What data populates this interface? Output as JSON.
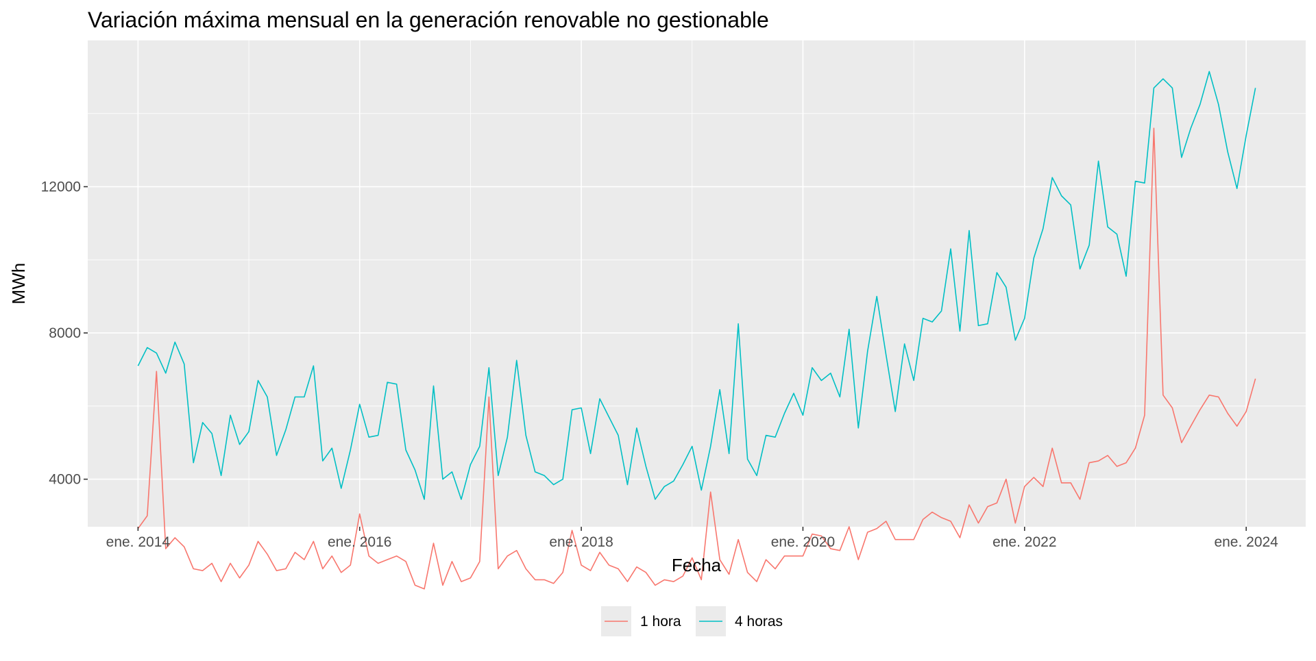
{
  "chart_data": {
    "type": "line",
    "title": "Variación máxima mensual en la generación renovable no gestionable",
    "xlabel": "Fecha",
    "ylabel": "MWh",
    "x_start": "2014-01",
    "x_end": "2024-02",
    "x_ticks": [
      {
        "date": "2014-01",
        "label": "ene. 2014"
      },
      {
        "date": "2016-01",
        "label": "ene. 2016"
      },
      {
        "date": "2018-01",
        "label": "ene. 2018"
      },
      {
        "date": "2020-01",
        "label": "ene. 2020"
      },
      {
        "date": "2022-01",
        "label": "ene. 2022"
      },
      {
        "date": "2024-01",
        "label": "ene. 2024"
      }
    ],
    "y_ticks": [
      4000,
      8000,
      12000
    ],
    "ylim": [
      2700,
      16000
    ],
    "grid": true,
    "legend_position": "bottom",
    "series": [
      {
        "name": "1 hora",
        "color": "#F8766D",
        "values": [
          2650,
          3000,
          6950,
          2100,
          2400,
          2150,
          1550,
          1500,
          1700,
          1200,
          1700,
          1300,
          1650,
          2300,
          1950,
          1500,
          1550,
          2000,
          1800,
          2300,
          1550,
          1900,
          1450,
          1650,
          3050,
          1900,
          1700,
          1800,
          1900,
          1750,
          1100,
          1000,
          2250,
          1100,
          1750,
          1200,
          1300,
          1750,
          6250,
          1550,
          1900,
          2050,
          1550,
          1250,
          1250,
          1150,
          1450,
          2600,
          1650,
          1500,
          2000,
          1650,
          1550,
          1200,
          1600,
          1450,
          1100,
          1250,
          1200,
          1350,
          1850,
          1250,
          3650,
          1800,
          1400,
          2350,
          1450,
          1200,
          1800,
          1550,
          1900,
          1900,
          1900,
          2500,
          2450,
          2100,
          2050,
          2700,
          1800,
          2550,
          2650,
          2850,
          2350,
          2350,
          2350,
          2900,
          3100,
          2950,
          2850,
          2400,
          3300,
          2800,
          3250,
          3350,
          4000,
          2800,
          3800,
          4050,
          3800,
          4850,
          3900,
          3900,
          3450,
          4450,
          4500,
          4650,
          4350,
          4450,
          4850,
          5750,
          13600,
          6300,
          5950,
          5000,
          5450,
          5900,
          6300,
          6250,
          5800,
          5450,
          5850,
          6750
        ]
      },
      {
        "name": "4 horas",
        "color": "#00BFC4",
        "values": [
          7100,
          7600,
          7450,
          6900,
          7750,
          7150,
          4450,
          5550,
          5250,
          4100,
          5750,
          4950,
          5300,
          6700,
          6250,
          4650,
          5350,
          6250,
          6250,
          7100,
          4500,
          4850,
          3750,
          4800,
          6050,
          5150,
          5200,
          6650,
          6600,
          4800,
          4250,
          3450,
          6550,
          4000,
          4200,
          3450,
          4400,
          4900,
          7050,
          4100,
          5150,
          7250,
          5200,
          4200,
          4100,
          3850,
          4000,
          5900,
          5950,
          4700,
          6200,
          5700,
          5200,
          3850,
          5400,
          4350,
          3450,
          3800,
          3950,
          4400,
          4900,
          3700,
          4900,
          6450,
          4700,
          8250,
          4550,
          4100,
          5200,
          5150,
          5800,
          6350,
          5750,
          7050,
          6700,
          6900,
          6250,
          8100,
          5400,
          7500,
          9000,
          7400,
          5850,
          7700,
          6700,
          8400,
          8300,
          8600,
          10300,
          8050,
          10800,
          8200,
          8250,
          9650,
          9250,
          7800,
          8400,
          10050,
          10850,
          12250,
          11750,
          11500,
          9750,
          10400,
          12700,
          10900,
          10700,
          9550,
          12150,
          12100,
          14700,
          14950,
          14700,
          12800,
          13600,
          14250,
          15150,
          14250,
          12950,
          11950,
          13400,
          14700
        ]
      }
    ]
  }
}
